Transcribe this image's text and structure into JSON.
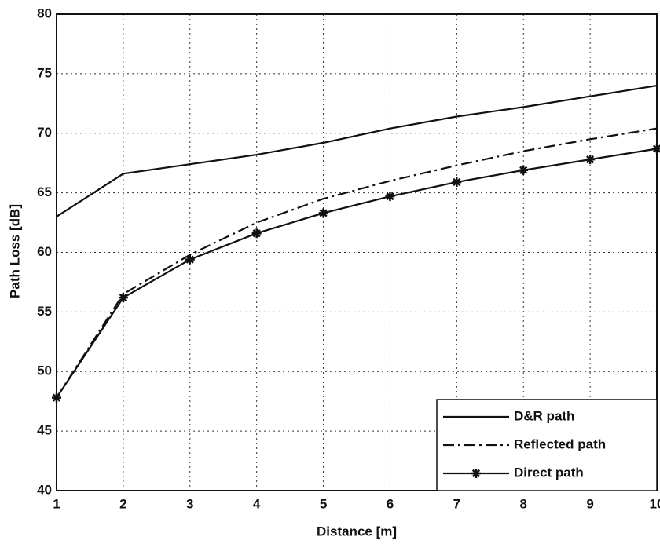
{
  "chart_data": {
    "type": "line",
    "xlabel": "Distance [m]",
    "ylabel": "Path Loss [dB]",
    "x": [
      1,
      2,
      3,
      4,
      5,
      6,
      7,
      8,
      9,
      10
    ],
    "series": [
      {
        "name": "D&R path",
        "color": "#111111",
        "style": "solid",
        "values": [
          63,
          66.6,
          67.4,
          68.2,
          69.2,
          70.4,
          71.4,
          72.2,
          73.1,
          74.0
        ]
      },
      {
        "name": "Reflected path",
        "color": "#111111",
        "style": "dashdot",
        "values": [
          47.8,
          56.5,
          59.8,
          62.5,
          64.5,
          66.0,
          67.3,
          68.5,
          69.5,
          70.4
        ]
      },
      {
        "name": "Direct path",
        "color": "#111111",
        "style": "solid",
        "marker": "star",
        "values": [
          47.8,
          56.2,
          59.4,
          61.6,
          63.3,
          64.7,
          65.9,
          66.9,
          67.8,
          68.7
        ]
      }
    ],
    "xlim": [
      1,
      10
    ],
    "xticks": [
      1,
      2,
      3,
      4,
      5,
      6,
      7,
      8,
      9,
      10
    ],
    "ylim": [
      40,
      80
    ],
    "yticks": [
      40,
      45,
      50,
      55,
      60,
      65,
      70,
      75,
      80
    ],
    "grid": true,
    "legend": "lower right"
  }
}
